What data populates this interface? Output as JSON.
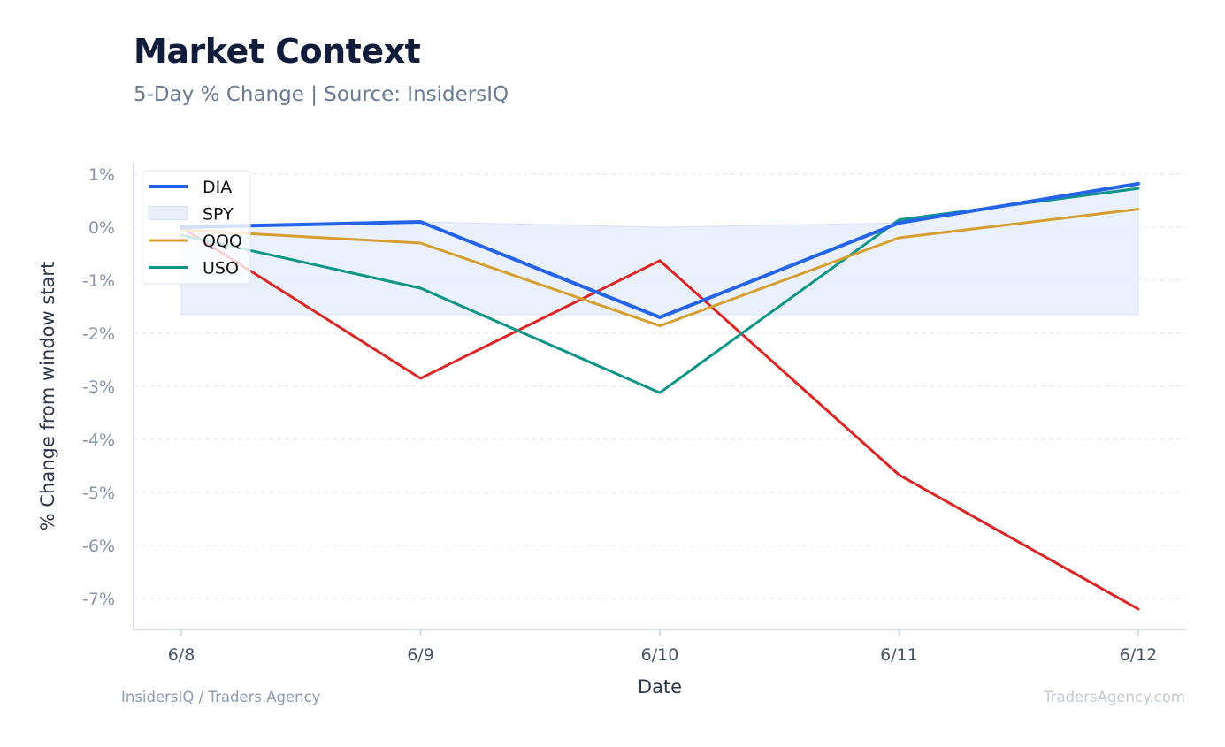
{
  "header": {
    "title": "Market Context",
    "subtitle": "5-Day % Change | Source: InsidersIQ"
  },
  "footer": {
    "left": "InsidersIQ / Traders Agency",
    "right": "TradersAgency.com"
  },
  "chart_data": {
    "type": "line",
    "x": [
      "6/8",
      "6/9",
      "6/10",
      "6/11",
      "6/12"
    ],
    "xlabel": "Date",
    "ylabel": "% Change from window start",
    "ylim": [
      -7.6,
      1.2
    ],
    "yticks": [
      1,
      0,
      -1,
      -2,
      -3,
      -4,
      -5,
      -6,
      -7
    ],
    "ytick_labels": [
      "1%",
      "0%",
      "-1%",
      "-2%",
      "-3%",
      "-4%",
      "-5%",
      "-6%",
      "-7%"
    ],
    "grid": true,
    "legend_position": "top-left",
    "series": [
      {
        "name": "DIA",
        "style": "line",
        "color": "#2563eb",
        "values": [
          0.0,
          0.1,
          -1.7,
          0.08,
          0.82
        ]
      },
      {
        "name": "SPY",
        "style": "band",
        "color": "#e8effb",
        "values": [
          -1.65,
          -1.65,
          -1.65,
          -1.65,
          -1.65
        ]
      },
      {
        "name": "QQQ",
        "style": "line",
        "color": "#d69e2e",
        "values": [
          -0.05,
          -0.3,
          -1.86,
          -0.2,
          0.34
        ]
      },
      {
        "name": "USO",
        "style": "line",
        "color": "#0f9488",
        "values": [
          -0.15,
          -1.15,
          -3.12,
          0.14,
          0.73
        ]
      },
      {
        "name": "",
        "style": "line",
        "color": "#dc2626",
        "values": [
          0.0,
          -2.85,
          -0.63,
          -4.67,
          -7.2
        ]
      }
    ]
  }
}
